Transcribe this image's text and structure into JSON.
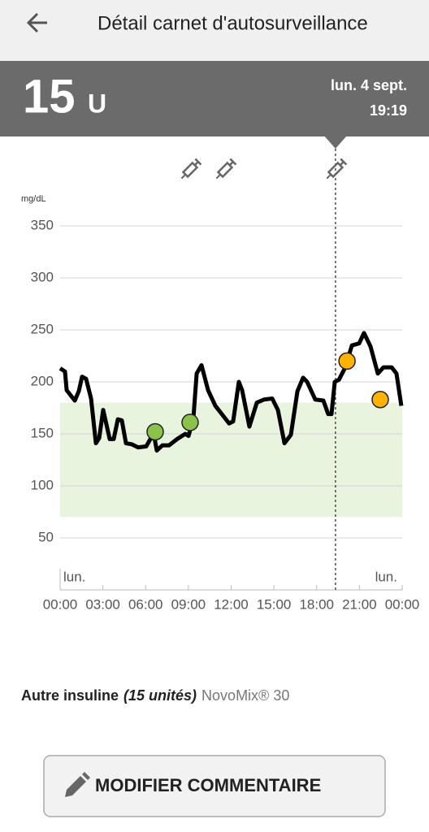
{
  "header": {
    "title": "Détail carnet d'autosurveillance",
    "dose": 15,
    "unit": "U",
    "date": "lun. 4 sept.",
    "time": "19:19"
  },
  "chart_data": {
    "type": "line",
    "y_label": "mg/dL",
    "x": [
      0,
      0.34,
      0.46,
      1.03,
      1.31,
      1.54,
      1.82,
      2.17,
      2.51,
      2.74,
      3.02,
      3.48,
      3.76,
      4.05,
      4.33,
      4.62,
      5.02,
      5.47,
      6.04,
      6.33,
      6.61,
      6.78,
      7.18,
      7.64,
      8.21,
      8.78,
      9.01,
      9.35,
      9.58,
      9.92,
      10.38,
      10.89,
      11.46,
      11.86,
      12.14,
      12.54,
      12.77,
      13.28,
      13.8,
      14.31,
      14.88,
      15.28,
      15.74,
      16.19,
      16.65,
      17.05,
      17.33,
      17.9,
      18.47,
      18.81,
      19.04,
      19.27,
      19.56,
      20.01,
      20.47,
      20.98,
      21.32,
      21.78,
      22.29,
      22.69,
      23.26,
      23.6,
      23.94
    ],
    "values": [
      213,
      210,
      192,
      182,
      191,
      205,
      203,
      184,
      141,
      146,
      173,
      145,
      145,
      164,
      163,
      141,
      140,
      137,
      138,
      145,
      147,
      134,
      139,
      139,
      145,
      150,
      148,
      165,
      208,
      216,
      192,
      177,
      167,
      160,
      162,
      200,
      192,
      157,
      180,
      183,
      184,
      173,
      141,
      149,
      191,
      204,
      200,
      183,
      182,
      169,
      169,
      200,
      202,
      214,
      235,
      237,
      247,
      234,
      208,
      214,
      214,
      208,
      177
    ],
    "color": "#000000",
    "readings_x": [
      6.67,
      9.12,
      20.13,
      22.46
    ],
    "readings": [
      152,
      161,
      220,
      183
    ],
    "reading_colors": [
      "#8bc34a",
      "#8bc34a",
      "#ffb300",
      "#ffb300"
    ],
    "injections_x": [
      9.12,
      11.57,
      19.32
    ],
    "cursor_x": 19.32,
    "target": [
      70,
      180
    ],
    "target_color": "#e9f4de",
    "day_labels": [
      "lun.",
      "lun."
    ],
    "xlim": [
      0,
      24
    ],
    "xticks": [
      {
        "value": 0,
        "label": "00:00"
      },
      {
        "value": 3,
        "label": "03:00"
      },
      {
        "value": 6,
        "label": "06:00"
      },
      {
        "value": 9,
        "label": "09:00"
      },
      {
        "value": 12,
        "label": "12:00"
      },
      {
        "value": 15,
        "label": "15:00"
      },
      {
        "value": 18,
        "label": "18:00"
      },
      {
        "value": 21,
        "label": "21:00"
      },
      {
        "value": 24,
        "label": "00:00"
      }
    ],
    "ylim": [
      0,
      350
    ],
    "yticks": [
      50,
      100,
      150,
      200,
      250,
      300,
      350
    ],
    "grid": true
  },
  "note": {
    "label": "Autre insuline",
    "amount": "(15 unités)",
    "product": "NovoMix® 30"
  },
  "button": {
    "label": "MODIFIER COMMENTAIRE"
  }
}
